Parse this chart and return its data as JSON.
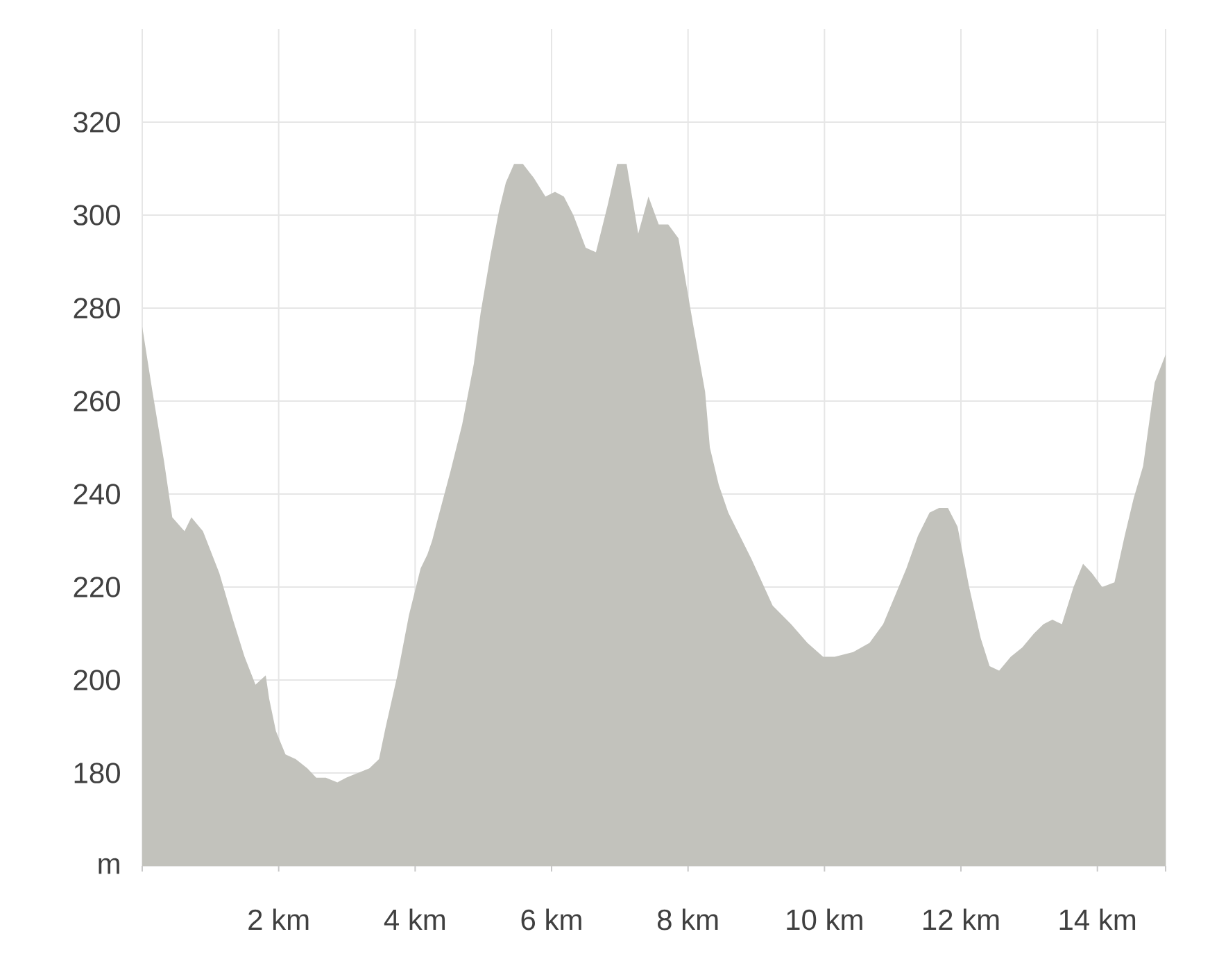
{
  "chart_data": {
    "type": "area",
    "x": [
      0,
      0.15,
      0.32,
      0.44,
      0.62,
      0.72,
      0.89,
      1.13,
      1.33,
      1.5,
      1.66,
      1.81,
      1.86,
      1.96,
      2.1,
      2.25,
      2.42,
      2.55,
      2.69,
      2.86,
      2.99,
      3.16,
      3.33,
      3.47,
      3.57,
      3.74,
      3.91,
      4.08,
      4.18,
      4.25,
      4.32,
      4.52,
      4.69,
      4.86,
      4.96,
      5.1,
      5.23,
      5.33,
      5.45,
      5.58,
      5.74,
      5.91,
      6.05,
      6.18,
      6.32,
      6.5,
      6.65,
      6.82,
      6.96,
      7.1,
      7.27,
      7.42,
      7.57,
      7.71,
      7.86,
      7.94,
      8.08,
      8.25,
      8.32,
      8.45,
      8.59,
      8.93,
      9.24,
      9.51,
      9.75,
      9.98,
      10.15,
      10.42,
      10.66,
      10.86,
      11.03,
      11.2,
      11.37,
      11.54,
      11.68,
      11.81,
      11.95,
      12.12,
      12.29,
      12.42,
      12.56,
      12.73,
      12.9,
      13.07,
      13.21,
      13.34,
      13.48,
      13.65,
      13.79,
      13.92,
      14.07,
      14.25,
      14.4,
      14.53,
      14.67,
      14.84,
      15
    ],
    "values": [
      276,
      262,
      247,
      235,
      232,
      235,
      232,
      223,
      213,
      205,
      199,
      201,
      196,
      189,
      184,
      183,
      181,
      179,
      179,
      178,
      179,
      180,
      181,
      183,
      190,
      201,
      214,
      224,
      227,
      230,
      234,
      245,
      255,
      268,
      279,
      291,
      301,
      307,
      311,
      311,
      308,
      304,
      305,
      304,
      300,
      293,
      292,
      302,
      311,
      311,
      296,
      304,
      298,
      298,
      295,
      288,
      276,
      262,
      250,
      242,
      236,
      226,
      216,
      212,
      208,
      205,
      205,
      206,
      208,
      212,
      218,
      224,
      231,
      236,
      237,
      237,
      233,
      220,
      209,
      203,
      202,
      205,
      207,
      210,
      212,
      213,
      212,
      220,
      225,
      223,
      220,
      221,
      231,
      239,
      246,
      264,
      270
    ],
    "color": "#c2c2bc",
    "xlim": [
      0,
      15
    ],
    "ylim": [
      160,
      340
    ],
    "xticks": [
      {
        "value": 0,
        "label": null
      },
      {
        "value": 2,
        "label": "2 km"
      },
      {
        "value": 4,
        "label": "4 km"
      },
      {
        "value": 6,
        "label": "6 km"
      },
      {
        "value": 8,
        "label": "8 km"
      },
      {
        "value": 10,
        "label": "10 km"
      },
      {
        "value": 12,
        "label": "12 km"
      },
      {
        "value": 14,
        "label": "14 km"
      },
      {
        "value": 15,
        "label": null
      }
    ],
    "yticks": [
      {
        "value": 160,
        "label": "m"
      },
      180,
      200,
      220,
      240,
      260,
      280,
      300,
      320
    ],
    "grid": true
  }
}
